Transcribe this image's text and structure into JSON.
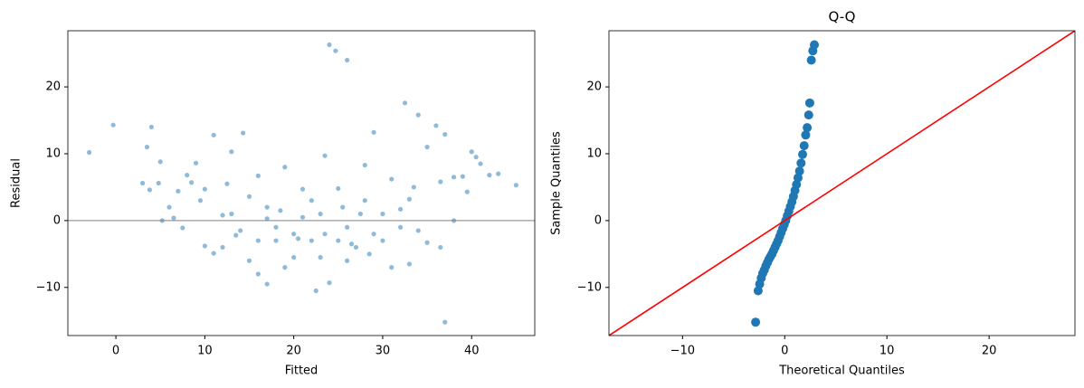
{
  "chart_data": [
    {
      "type": "scatter",
      "xlabel": "Fitted",
      "ylabel": "Residual",
      "color": "#1f77b4",
      "alpha": 0.5,
      "hline": 0,
      "hline_color": "gray",
      "x": [
        -3,
        -0.3,
        3.5,
        4,
        4.8,
        5,
        3,
        3.8,
        5.2,
        6,
        7,
        6.5,
        8,
        8.5,
        9,
        7.5,
        10,
        11,
        11,
        10,
        12,
        13,
        14.3,
        12.5,
        13,
        14,
        15,
        16,
        15,
        16,
        17,
        17,
        18,
        19,
        19,
        20,
        21,
        22,
        21,
        22,
        23,
        22.5,
        24,
        23.5,
        24,
        24.7,
        26,
        25,
        26,
        26,
        27,
        28,
        29,
        28,
        28.5,
        30,
        30,
        31,
        31,
        32,
        32.5,
        33,
        33,
        34,
        34,
        35,
        35,
        36,
        36.5,
        37,
        37,
        38,
        38,
        39,
        40,
        40.5,
        41,
        42,
        43,
        45,
        39.5,
        36.5,
        33.5,
        32,
        29,
        25,
        23,
        20,
        18,
        17,
        16,
        18.5,
        20.5,
        23.5,
        25.5,
        26.5,
        27.5,
        12,
        13.5,
        9.5
      ],
      "values": [
        10.2,
        14.3,
        11,
        14,
        5.6,
        8.8,
        5.6,
        4.6,
        0,
        2,
        4.4,
        0.4,
        6.8,
        5.7,
        8.6,
        -1.1,
        4.7,
        12.8,
        -4.9,
        -3.8,
        -4,
        10.3,
        13.1,
        5.5,
        1,
        -1.5,
        3.6,
        6.7,
        -6,
        -8,
        -9.5,
        2,
        -3,
        8,
        -7,
        -2,
        0.5,
        -3,
        4.7,
        3,
        -5.5,
        -10.5,
        -9.3,
        9.7,
        26.3,
        25.4,
        24,
        4.8,
        -1,
        -6,
        -4,
        8.3,
        13.2,
        3,
        -5,
        -3,
        1,
        6.2,
        -7,
        -1,
        17.6,
        -6.5,
        3.2,
        15.8,
        -1.5,
        11,
        -3.3,
        14.2,
        -4,
        12.9,
        -15.2,
        0,
        6.5,
        6.6,
        10.3,
        9.5,
        8.5,
        6.8,
        7,
        5.3,
        4.3,
        5.8,
        5,
        1.7,
        -2,
        -3,
        1,
        -5.5,
        -1,
        0.3,
        -3,
        1.5,
        -2.7,
        -2,
        2,
        -3.5,
        1,
        0.8,
        -2.2,
        3
      ],
      "xlim": [
        -5.4,
        47.1
      ],
      "xticks": [
        0,
        10,
        20,
        30,
        40
      ],
      "ylim": [
        -17.2,
        28.4
      ],
      "yticks": [
        {
          "value": -10,
          "label": "−10"
        },
        0,
        10,
        20
      ]
    },
    {
      "type": "qq",
      "title": "Q-Q",
      "xlabel": "Theoretical Quantiles",
      "ylabel": "Sample Quantiles",
      "color": "#1f77b4",
      "line": "45",
      "line_color": "red",
      "x": [
        -2.85,
        -2.6,
        -2.45,
        -2.3,
        -2.15,
        -2.0,
        -1.85,
        -1.7,
        -1.55,
        -1.4,
        -1.25,
        -1.1,
        -0.95,
        -0.8,
        -0.65,
        -0.5,
        -0.35,
        -0.2,
        -0.05,
        0.1,
        0.25,
        0.4,
        0.55,
        0.7,
        0.85,
        1.0,
        1.15,
        1.3,
        1.45,
        1.6,
        1.75,
        1.9,
        2.05,
        2.2,
        2.35,
        2.45,
        2.6,
        2.75,
        2.9
      ],
      "values": [
        -15.2,
        -10.5,
        -9.5,
        -8.6,
        -7.9,
        -7.4,
        -6.8,
        -6.3,
        -5.8,
        -5.4,
        -5.0,
        -4.5,
        -4.0,
        -3.5,
        -3.0,
        -2.4,
        -1.8,
        -1.2,
        -0.6,
        0.0,
        0.7,
        1.4,
        2.1,
        2.8,
        3.6,
        4.5,
        5.4,
        6.4,
        7.4,
        8.6,
        9.9,
        11.2,
        12.8,
        13.9,
        15.8,
        17.6,
        24.0,
        25.4,
        26.3
      ],
      "xlim": [
        -17.2,
        28.4
      ],
      "xticks": [
        {
          "value": -10,
          "label": "−10"
        },
        0,
        10,
        20
      ],
      "ylim": [
        -17.2,
        28.4
      ],
      "yticks": [
        {
          "value": -10,
          "label": "−10"
        },
        0,
        10,
        20
      ]
    }
  ]
}
